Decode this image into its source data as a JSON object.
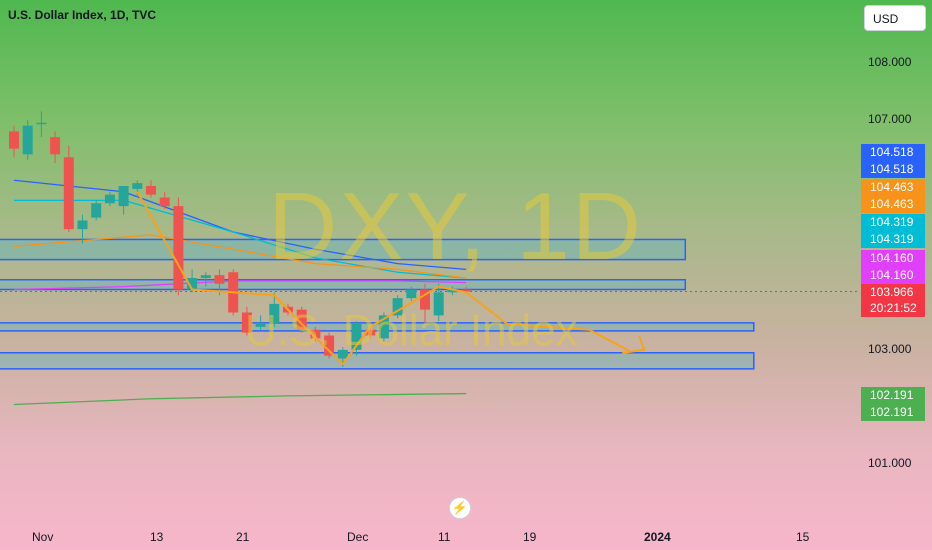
{
  "header": {
    "title": "U.S. Dollar Index, 1D, TVC",
    "currency": "USD"
  },
  "watermark": {
    "main": "DXY, 1D",
    "sub": "U.S. Dollar Index"
  },
  "colors": {
    "up": "#26a69a",
    "down": "#ef5350",
    "zone_border": "#2962ff",
    "arrow": "#f7a21b"
  },
  "price_badges": [
    {
      "text": "104.518",
      "color": "#2962ff"
    },
    {
      "text": "104.518",
      "color": "#2962ff"
    },
    {
      "text": "104.463",
      "color": "#f7931a"
    },
    {
      "text": "104.463",
      "color": "#f7931a"
    },
    {
      "text": "104.319",
      "color": "#00bcd4"
    },
    {
      "text": "104.319",
      "color": "#00bcd4"
    },
    {
      "text": "104.160",
      "color": "#e040fb"
    },
    {
      "text": "104.160",
      "color": "#e040fb"
    },
    {
      "text": "103.966",
      "color": "#f23645"
    },
    {
      "text": "20:21:52",
      "color": "#f23645"
    },
    {
      "text": "102.191",
      "color": "#4caf50"
    },
    {
      "text": "102.191",
      "color": "#4caf50"
    }
  ],
  "chart_data": {
    "type": "candlestick",
    "title": "U.S. Dollar Index, 1D, TVC",
    "y_ticks": [
      "108.000",
      "107.000",
      "103.000",
      "101.000"
    ],
    "x_ticks": [
      "Nov",
      "13",
      "21",
      "Dec",
      "11",
      "19",
      "2024",
      "15"
    ],
    "ylim": [
      100.6,
      108.5
    ],
    "last_price": 103.966,
    "candles": [
      {
        "o": 106.75,
        "h": 106.85,
        "l": 106.3,
        "c": 106.45
      },
      {
        "o": 106.35,
        "h": 106.95,
        "l": 106.25,
        "c": 106.85
      },
      {
        "o": 106.9,
        "h": 107.1,
        "l": 106.65,
        "c": 106.9
      },
      {
        "o": 106.65,
        "h": 106.75,
        "l": 106.2,
        "c": 106.35
      },
      {
        "o": 106.3,
        "h": 106.5,
        "l": 105.0,
        "c": 105.05
      },
      {
        "o": 105.05,
        "h": 105.3,
        "l": 104.8,
        "c": 105.2
      },
      {
        "o": 105.25,
        "h": 105.55,
        "l": 105.2,
        "c": 105.5
      },
      {
        "o": 105.5,
        "h": 105.7,
        "l": 105.45,
        "c": 105.65
      },
      {
        "o": 105.45,
        "h": 105.8,
        "l": 105.3,
        "c": 105.8
      },
      {
        "o": 105.75,
        "h": 105.9,
        "l": 105.6,
        "c": 105.85
      },
      {
        "o": 105.8,
        "h": 105.9,
        "l": 105.6,
        "c": 105.65
      },
      {
        "o": 105.6,
        "h": 105.7,
        "l": 105.4,
        "c": 105.45
      },
      {
        "o": 105.45,
        "h": 105.6,
        "l": 103.9,
        "c": 104.0
      },
      {
        "o": 104.0,
        "h": 104.35,
        "l": 103.95,
        "c": 104.2
      },
      {
        "o": 104.2,
        "h": 104.3,
        "l": 104.05,
        "c": 104.25
      },
      {
        "o": 104.25,
        "h": 104.35,
        "l": 103.9,
        "c": 104.1
      },
      {
        "o": 104.3,
        "h": 104.35,
        "l": 103.55,
        "c": 103.6
      },
      {
        "o": 103.6,
        "h": 103.7,
        "l": 103.2,
        "c": 103.25
      },
      {
        "o": 103.35,
        "h": 103.55,
        "l": 103.3,
        "c": 103.4
      },
      {
        "o": 103.4,
        "h": 103.95,
        "l": 103.35,
        "c": 103.75
      },
      {
        "o": 103.7,
        "h": 103.75,
        "l": 103.55,
        "c": 103.6
      },
      {
        "o": 103.65,
        "h": 103.7,
        "l": 103.25,
        "c": 103.3
      },
      {
        "o": 103.3,
        "h": 103.35,
        "l": 103.1,
        "c": 103.15
      },
      {
        "o": 103.2,
        "h": 103.25,
        "l": 102.8,
        "c": 102.85
      },
      {
        "o": 102.8,
        "h": 103.0,
        "l": 102.65,
        "c": 102.95
      },
      {
        "o": 102.95,
        "h": 103.45,
        "l": 102.85,
        "c": 103.4
      },
      {
        "o": 103.3,
        "h": 103.35,
        "l": 103.15,
        "c": 103.2
      },
      {
        "o": 103.15,
        "h": 103.6,
        "l": 103.1,
        "c": 103.55
      },
      {
        "o": 103.55,
        "h": 103.9,
        "l": 103.5,
        "c": 103.85
      },
      {
        "o": 103.85,
        "h": 104.05,
        "l": 103.8,
        "c": 104.0
      },
      {
        "o": 104.0,
        "h": 104.1,
        "l": 103.4,
        "c": 103.65
      },
      {
        "o": 103.55,
        "h": 104.1,
        "l": 103.45,
        "c": 103.95
      },
      {
        "o": 103.95,
        "h": 104.05,
        "l": 103.9,
        "c": 104.0
      },
      {
        "o": 104.0,
        "h": 104.05,
        "l": 103.94,
        "c": 103.966
      }
    ],
    "zones": [
      {
        "from": 104.52,
        "to": 104.87,
        "end_index": 49
      },
      {
        "from": 104.0,
        "to": 104.17,
        "end_index": 49
      },
      {
        "from": 103.28,
        "to": 103.42,
        "end_index": 54
      },
      {
        "from": 102.62,
        "to": 102.9,
        "end_index": 54
      }
    ],
    "moving_averages": [
      {
        "name": "",
        "color": "#2962ff",
        "points": [
          [
            0,
            105.9
          ],
          [
            8,
            105.7
          ],
          [
            16,
            105.0
          ],
          [
            22,
            104.7
          ],
          [
            28,
            104.45
          ],
          [
            33,
            104.35
          ]
        ]
      },
      {
        "name": "",
        "color": "#00bcd4",
        "points": [
          [
            0,
            105.55
          ],
          [
            8,
            105.55
          ],
          [
            16,
            105.0
          ],
          [
            22,
            104.55
          ],
          [
            28,
            104.3
          ],
          [
            33,
            104.2
          ]
        ]
      },
      {
        "name": "",
        "color": "#f7931a",
        "points": [
          [
            0,
            104.75
          ],
          [
            10,
            104.95
          ],
          [
            16,
            104.7
          ],
          [
            22,
            104.45
          ],
          [
            28,
            104.35
          ],
          [
            33,
            104.2
          ]
        ]
      },
      {
        "name": "",
        "color": "#e040fb",
        "points": [
          [
            0,
            104.0
          ],
          [
            8,
            104.05
          ],
          [
            16,
            104.15
          ],
          [
            22,
            104.15
          ],
          [
            28,
            104.15
          ],
          [
            33,
            104.12
          ]
        ]
      },
      {
        "name": "",
        "color": "#4caf50",
        "points": [
          [
            0,
            102.0
          ],
          [
            10,
            102.1
          ],
          [
            20,
            102.15
          ],
          [
            33,
            102.19
          ]
        ]
      }
    ],
    "projection_path": [
      [
        9,
        105.7
      ],
      [
        13,
        104.0
      ],
      [
        19,
        103.9
      ],
      [
        21,
        103.4
      ],
      [
        24,
        102.7
      ],
      [
        26,
        103.35
      ],
      [
        31,
        104.05
      ],
      [
        33,
        103.95
      ],
      [
        36,
        103.4
      ],
      [
        42,
        103.3
      ],
      [
        45,
        102.92
      ]
    ],
    "projection_arrow_end": [
      46,
      102.95
    ]
  }
}
